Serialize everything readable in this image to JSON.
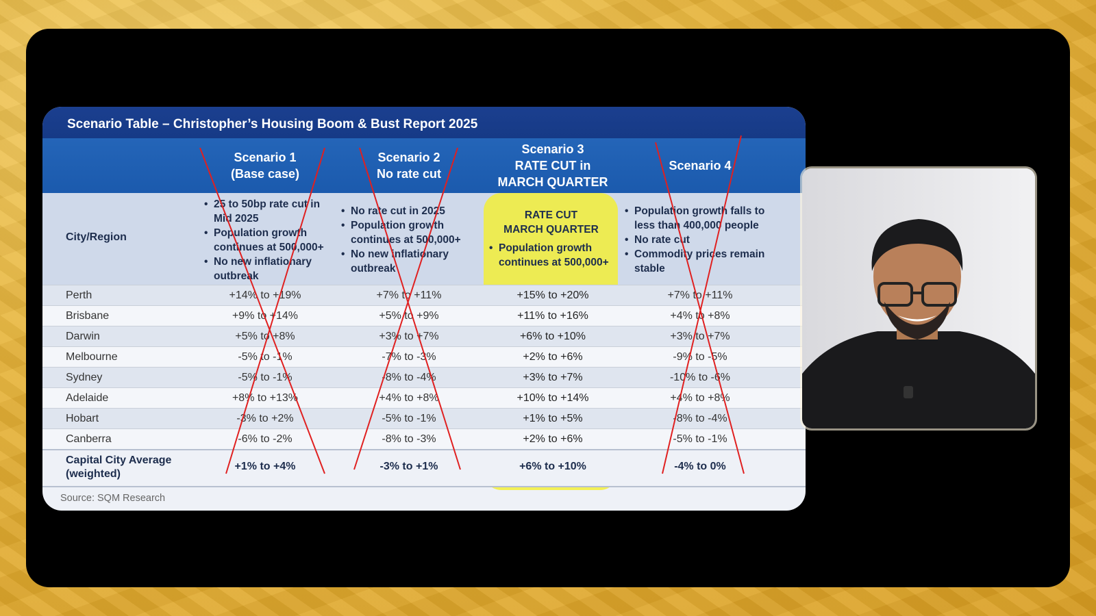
{
  "slide": {
    "title": "Scenario Table – Christopher’s Housing  Boom & Bust Report 2025",
    "city_header": "City/Region",
    "scenarios": [
      {
        "head1": "Scenario 1",
        "head2": "(Base case)",
        "head3": "",
        "bullets": [
          "25 to 50bp rate cut in Mid 2025",
          "Population growth continues at 500,000+",
          "No new inflationary outbreak"
        ],
        "crossed": true
      },
      {
        "head1": "Scenario 2",
        "head2": "No rate cut",
        "head3": "",
        "bullets": [
          "No rate cut in 2025",
          "Population growth continues at 500,000+",
          "No new inflationary outbreak"
        ],
        "crossed": true
      },
      {
        "head1": "Scenario 3",
        "head2": "RATE CUT in",
        "head3": "MARCH QUARTER",
        "top_label_1": "RATE CUT",
        "top_label_2": "MARCH QUARTER",
        "bullets": [
          "Population growth continues at 500,000+"
        ],
        "crossed": false,
        "highlighted": true
      },
      {
        "head1": "Scenario 4",
        "head2": "",
        "head3": "",
        "bullets": [
          "Population growth falls to less than 400,000 people",
          "No rate cut",
          "Commodity prices remain stable"
        ],
        "crossed": true
      }
    ],
    "rows": [
      {
        "city": "Perth",
        "s1": "+14% to +19%",
        "s2": "+7% to +11%",
        "s3": "+15% to +20%",
        "s4": "+7% to +11%"
      },
      {
        "city": "Brisbane",
        "s1": "+9% to +14%",
        "s2": "+5% to +9%",
        "s3": "+11% to +16%",
        "s4": "+4% to +8%"
      },
      {
        "city": "Darwin",
        "s1": "+5% to +8%",
        "s2": "+3% to +7%",
        "s3": "+6% to +10%",
        "s4": "+3% to +7%"
      },
      {
        "city": "Melbourne",
        "s1": "-5% to -1%",
        "s2": "-7% to -3%",
        "s3": "+2% to +6%",
        "s4": "-9% to -5%"
      },
      {
        "city": "Sydney",
        "s1": "-5% to -1%",
        "s2": "-8% to -4%",
        "s3": "+3% to +7%",
        "s4": "-10% to -6%"
      },
      {
        "city": "Adelaide",
        "s1": "+8% to +13%",
        "s2": "+4% to +8%",
        "s3": "+10% to +14%",
        "s4": "+4% to +8%"
      },
      {
        "city": "Hobart",
        "s1": "-3% to +2%",
        "s2": "-5% to -1%",
        "s3": "+1% to +5%",
        "s4": "-8% to -4%"
      },
      {
        "city": "Canberra",
        "s1": "-6% to -2%",
        "s2": "-8% to -3%",
        "s3": "+2% to +6%",
        "s4": "-5% to -1%"
      }
    ],
    "average": {
      "label_1": "Capital City Average",
      "label_2": "(weighted)",
      "s1": "+1% to +4%",
      "s2": "-3% to +1%",
      "s3": "+6% to +10%",
      "s4": "-4% to 0%"
    },
    "source": "Source: SQM Research",
    "colors": {
      "title_bar": "#1b3f8f",
      "header_row": "#2465b8",
      "highlight": "#f5f028",
      "cross": "#e02020"
    }
  }
}
